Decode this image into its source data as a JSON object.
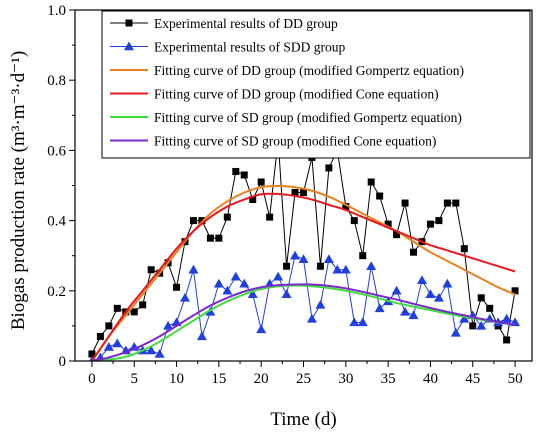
{
  "chart_data": {
    "type": "line",
    "xlabel": "Time (d)",
    "ylabel": "Biogas production rate (m³·m⁻³·d⁻¹)",
    "xlim": [
      -2,
      52
    ],
    "ylim": [
      0,
      1.0
    ],
    "xticks": [
      0,
      5,
      10,
      15,
      20,
      25,
      30,
      35,
      40,
      45,
      50
    ],
    "yticks": [
      0.0,
      0.2,
      0.4,
      0.6,
      0.8,
      1.0
    ],
    "ytick_labels": [
      "0",
      "0.2",
      "0.4",
      "0.6",
      "0.8",
      "1.0"
    ],
    "grid": false,
    "legend_position": "top-right",
    "series": [
      {
        "name": "Experimental results of DD group",
        "kind": "markers-line",
        "marker": "square",
        "color": "#000000",
        "x": [
          0,
          1,
          2,
          3,
          4,
          5,
          6,
          7,
          8,
          9,
          10,
          11,
          12,
          13,
          14,
          15,
          16,
          17,
          18,
          19,
          20,
          21,
          22,
          23,
          24,
          25,
          26,
          27,
          28,
          29,
          30,
          31,
          32,
          33,
          34,
          35,
          36,
          37,
          38,
          39,
          40,
          41,
          42,
          43,
          44,
          45,
          46,
          47,
          48,
          49,
          50
        ],
        "y": [
          0.02,
          0.07,
          0.1,
          0.15,
          0.14,
          0.14,
          0.16,
          0.26,
          0.25,
          0.28,
          0.21,
          0.34,
          0.4,
          0.4,
          0.35,
          0.35,
          0.41,
          0.54,
          0.53,
          0.46,
          0.51,
          0.41,
          0.63,
          0.27,
          0.48,
          0.48,
          0.58,
          0.27,
          0.55,
          0.6,
          0.44,
          0.4,
          0.3,
          0.51,
          0.47,
          0.39,
          0.36,
          0.45,
          0.31,
          0.34,
          0.39,
          0.4,
          0.45,
          0.45,
          0.32,
          0.1,
          0.18,
          0.15,
          0.1,
          0.06,
          0.2
        ]
      },
      {
        "name": "Experimental results of SDD group",
        "kind": "markers-line",
        "marker": "triangle",
        "color": "#1f3fe0",
        "x": [
          0,
          1,
          2,
          3,
          4,
          5,
          6,
          7,
          8,
          9,
          10,
          11,
          12,
          13,
          14,
          15,
          16,
          17,
          18,
          19,
          20,
          21,
          22,
          23,
          24,
          25,
          26,
          27,
          28,
          29,
          30,
          31,
          32,
          33,
          34,
          35,
          36,
          37,
          38,
          39,
          40,
          41,
          42,
          43,
          44,
          45,
          46,
          47,
          48,
          49,
          50
        ],
        "y": [
          0.0,
          0.01,
          0.04,
          0.05,
          0.03,
          0.04,
          0.03,
          0.03,
          0.02,
          0.1,
          0.11,
          0.18,
          0.26,
          0.07,
          0.14,
          0.22,
          0.2,
          0.24,
          0.22,
          0.19,
          0.09,
          0.22,
          0.24,
          0.19,
          0.3,
          0.29,
          0.12,
          0.16,
          0.29,
          0.26,
          0.26,
          0.11,
          0.11,
          0.27,
          0.15,
          0.17,
          0.2,
          0.14,
          0.13,
          0.23,
          0.19,
          0.18,
          0.22,
          0.08,
          0.12,
          0.13,
          0.1,
          0.12,
          0.11,
          0.12,
          0.11
        ]
      },
      {
        "name": "Fitting curve of DD group (modified Gompertz equation)",
        "kind": "curve",
        "color": "#e8821e",
        "x": [
          0,
          2,
          4,
          6,
          8,
          10,
          12,
          14,
          16,
          18,
          20,
          22,
          24,
          26,
          28,
          30,
          32,
          34,
          36,
          38,
          40,
          42,
          44,
          46,
          48,
          50
        ],
        "y": [
          0.0,
          0.07,
          0.13,
          0.19,
          0.25,
          0.31,
          0.37,
          0.42,
          0.455,
          0.48,
          0.495,
          0.499,
          0.495,
          0.485,
          0.468,
          0.445,
          0.42,
          0.395,
          0.37,
          0.34,
          0.31,
          0.285,
          0.26,
          0.235,
          0.21,
          0.19
        ]
      },
      {
        "name": "Fitting curve of DD group (modified Cone equation)",
        "kind": "curve",
        "color": "#e8191e",
        "x": [
          0,
          2,
          4,
          6,
          8,
          10,
          12,
          14,
          16,
          18,
          20,
          22,
          24,
          26,
          28,
          30,
          32,
          34,
          36,
          38,
          40,
          42,
          44,
          46,
          48,
          50
        ],
        "y": [
          0.0,
          0.07,
          0.14,
          0.2,
          0.26,
          0.32,
          0.37,
          0.41,
          0.44,
          0.46,
          0.475,
          0.476,
          0.47,
          0.46,
          0.445,
          0.43,
          0.41,
          0.39,
          0.37,
          0.35,
          0.33,
          0.315,
          0.3,
          0.285,
          0.27,
          0.255
        ]
      },
      {
        "name": "Fitting curve of SD group (modified Gompertz equation)",
        "kind": "curve",
        "color": "#3fdc3a",
        "x": [
          0,
          2,
          4,
          6,
          8,
          10,
          12,
          14,
          16,
          18,
          20,
          22,
          24,
          26,
          28,
          30,
          32,
          34,
          36,
          38,
          40,
          42,
          44,
          46,
          48,
          50
        ],
        "y": [
          0.0,
          0.004,
          0.012,
          0.03,
          0.055,
          0.085,
          0.115,
          0.145,
          0.17,
          0.19,
          0.205,
          0.213,
          0.215,
          0.213,
          0.208,
          0.2,
          0.19,
          0.178,
          0.165,
          0.155,
          0.145,
          0.135,
          0.126,
          0.118,
          0.11,
          0.103
        ]
      },
      {
        "name": "Fitting curve of SD group (modified Cone equation)",
        "kind": "curve",
        "color": "#7a2bcf",
        "x": [
          0,
          2,
          4,
          6,
          8,
          10,
          12,
          14,
          16,
          18,
          20,
          22,
          24,
          26,
          28,
          30,
          32,
          34,
          36,
          38,
          40,
          42,
          44,
          46,
          48,
          50
        ],
        "y": [
          0.0,
          0.01,
          0.025,
          0.045,
          0.07,
          0.1,
          0.13,
          0.158,
          0.18,
          0.198,
          0.21,
          0.216,
          0.218,
          0.218,
          0.214,
          0.207,
          0.197,
          0.186,
          0.175,
          0.163,
          0.151,
          0.14,
          0.13,
          0.12,
          0.111,
          0.103
        ]
      }
    ]
  }
}
